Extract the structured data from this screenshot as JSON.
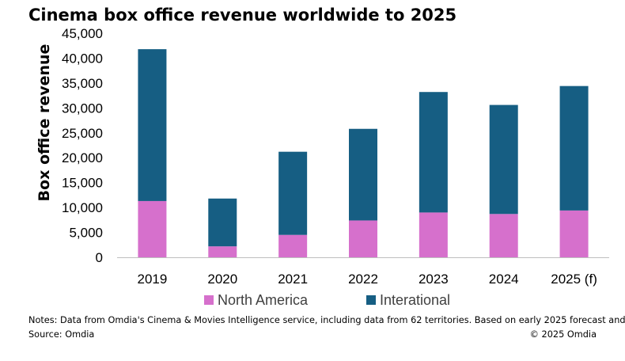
{
  "chart_data": {
    "type": "bar",
    "stacked": true,
    "title": "Cinema box office revenue worldwide to 2025",
    "xlabel": "",
    "ylabel": "Box office revenue",
    "categories": [
      "2019",
      "2020",
      "2021",
      "2022",
      "2023",
      "2024",
      "2025 (f)"
    ],
    "series": [
      {
        "name": "North America",
        "color": "#d670cc",
        "values": [
          11300,
          2200,
          4500,
          7400,
          9000,
          8700,
          9400
        ]
      },
      {
        "name": "Interational",
        "color": "#165e83",
        "values": [
          30500,
          9600,
          16700,
          18400,
          24200,
          21900,
          25000
        ]
      }
    ],
    "ylim": [
      0,
      45000
    ],
    "yticks": [
      0,
      5000,
      10000,
      15000,
      20000,
      25000,
      30000,
      35000,
      40000,
      45000
    ],
    "ytick_labels": [
      "0",
      "5,000",
      "10,000",
      "15,000",
      "20,000",
      "25,000",
      "30,000",
      "35,000",
      "40,000",
      "45,000"
    ],
    "grid": false,
    "legend_position": "bottom"
  },
  "footer": {
    "notes": "Notes: Data from Omdia's Cinema & Movies Intelligence service, including data from 62 territories.  Based on early 2025 forecast and",
    "source": "Source: Omdia",
    "copyright": "© 2025 Omdia"
  }
}
